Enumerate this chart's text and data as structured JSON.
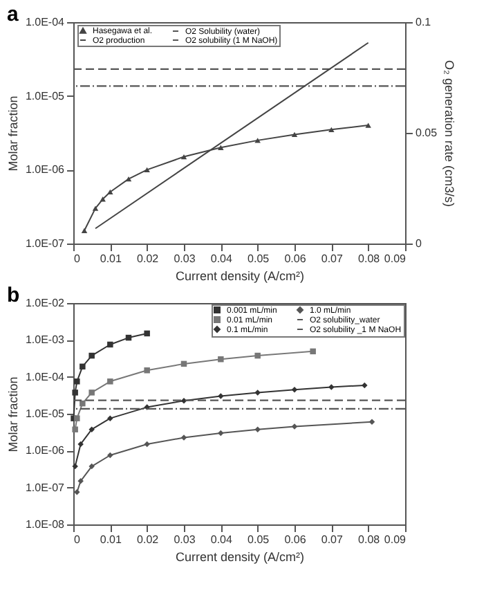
{
  "chart_data": [
    {
      "type": "line",
      "title": "a",
      "xlabel": "Current density (A/cm²)",
      "ylabel": "Molar fraction",
      "y2label": "O₂ generation rate (cm3/s)",
      "log": "y",
      "grid": false,
      "legend": "top",
      "xlim": [
        0,
        0.09
      ],
      "xticks": [
        0,
        0.01,
        0.02,
        0.03,
        0.04,
        0.05,
        0.06,
        0.07,
        0.08,
        0.09
      ],
      "ylim": [
        1e-07,
        0.0001
      ],
      "yticks": [
        {
          "value": 1e-07,
          "label": "1.0E-07"
        },
        {
          "value": 1e-06,
          "label": "1.0E-06"
        },
        {
          "value": 1e-05,
          "label": "1.0E-05"
        },
        {
          "value": 0.0001,
          "label": "1.0E-04"
        }
      ],
      "y2lim": [
        0,
        0.1
      ],
      "y2ticks": [
        0,
        0.05,
        0.1
      ],
      "series": [
        {
          "name": "Hasegawa et al.",
          "color": "#444444",
          "marker": "triangle",
          "x": [
            0.003,
            0.006,
            0.008,
            0.01,
            0.015,
            0.02,
            0.03,
            0.04,
            0.05,
            0.06,
            0.07,
            0.08
          ],
          "values": [
            1.5e-07,
            3e-07,
            4e-07,
            5e-07,
            7.5e-07,
            1e-06,
            1.5e-06,
            2e-06,
            2.5e-06,
            3e-06,
            3.5e-06,
            4e-06
          ]
        },
        {
          "name": "O2 production",
          "color": "#444444",
          "marker": "none",
          "axis": "y2",
          "x": [
            0.006,
            0.08
          ],
          "values": [
            0.0068,
            0.0907
          ]
        }
      ],
      "ref_lines": [
        {
          "axis": "y",
          "value": 2.31e-05,
          "label": "O2 Solubility (water)",
          "line_style": "dashed",
          "color": "#555555"
        },
        {
          "axis": "y",
          "value": 1.36e-05,
          "label": "O2 solubility (1 M NaOH)",
          "line_style": "dashdot",
          "color": "#555555"
        }
      ]
    },
    {
      "type": "line",
      "title": "b",
      "xlabel": "Current density (A/cm²)",
      "ylabel": "Molar fraction",
      "log": "y",
      "grid": false,
      "legend": "top right",
      "xlim": [
        0,
        0.09
      ],
      "xticks": [
        0,
        0.01,
        0.02,
        0.03,
        0.04,
        0.05,
        0.06,
        0.07,
        0.08,
        0.09
      ],
      "ylim": [
        1e-08,
        0.01
      ],
      "yticks": [
        {
          "value": 1e-08,
          "label": "1.0E-08"
        },
        {
          "value": 1e-07,
          "label": "1.0E-07"
        },
        {
          "value": 1e-06,
          "label": "1.0E-06"
        },
        {
          "value": 1e-05,
          "label": "1.0E-05"
        },
        {
          "value": 0.0001,
          "label": "1.0E-04"
        },
        {
          "value": 0.001,
          "label": "1.0E-03"
        },
        {
          "value": 0.01,
          "label": "1.0E-02"
        }
      ],
      "series": [
        {
          "name": "0.001 mL/min",
          "color": "#333333",
          "marker": "square",
          "x": [
            0.0001,
            0.0005,
            0.001,
            0.0025,
            0.005,
            0.01,
            0.015,
            0.02
          ],
          "values": [
            7.5e-06,
            3.75e-05,
            7.5e-05,
            0.00019,
            0.000375,
            0.00075,
            0.00115,
            0.0015
          ]
        },
        {
          "name": "0.01 mL/min",
          "color": "#777777",
          "marker": "square",
          "x": [
            0.0005,
            0.001,
            0.0025,
            0.005,
            0.01,
            0.02,
            0.03,
            0.04,
            0.05,
            0.065
          ],
          "values": [
            3.75e-06,
            7.5e-06,
            1.9e-05,
            3.75e-05,
            7.5e-05,
            0.00015,
            0.000225,
            0.0003,
            0.000375,
            0.00049
          ]
        },
        {
          "name": "0.1 mL/min",
          "color": "#333333",
          "marker": "diamond",
          "x": [
            0.0005,
            0.002,
            0.005,
            0.01,
            0.02,
            0.03,
            0.04,
            0.05,
            0.06,
            0.07,
            0.079
          ],
          "values": [
            3.75e-07,
            1.5e-06,
            3.75e-06,
            7.5e-06,
            1.5e-05,
            2.25e-05,
            3e-05,
            3.75e-05,
            4.5e-05,
            5.25e-05,
            5.9e-05
          ]
        },
        {
          "name": "1.0 mL/min",
          "color": "#555555",
          "marker": "diamond",
          "x": [
            0.001,
            0.002,
            0.005,
            0.01,
            0.02,
            0.03,
            0.04,
            0.05,
            0.06,
            0.081
          ],
          "values": [
            7.5e-08,
            1.5e-07,
            3.75e-07,
            7.5e-07,
            1.5e-06,
            2.25e-06,
            3e-06,
            3.75e-06,
            4.5e-06,
            6e-06
          ]
        }
      ],
      "ref_lines": [
        {
          "axis": "y",
          "value": 2.31e-05,
          "label": "O2 solubility_water",
          "line_style": "dashed",
          "color": "#555555"
        },
        {
          "axis": "y",
          "value": 1.36e-05,
          "label": "O2 solubility _1 M NaOH",
          "line_style": "dashdot",
          "color": "#555555"
        }
      ]
    }
  ]
}
